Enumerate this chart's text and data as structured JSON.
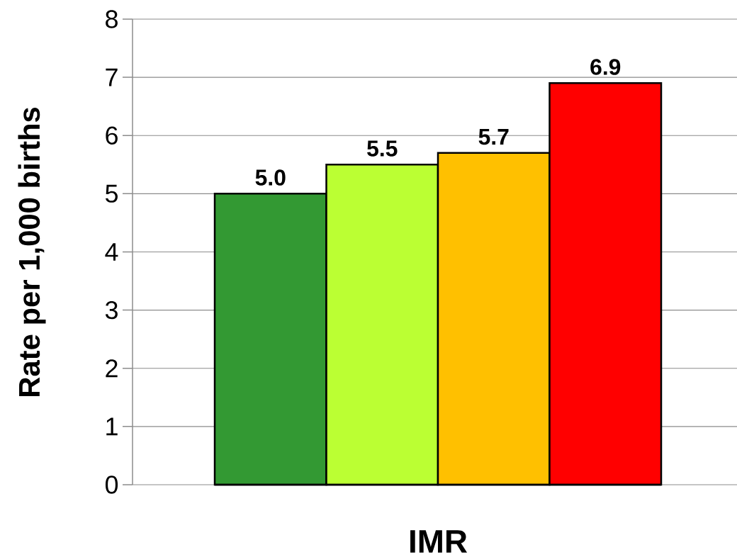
{
  "chart_data": {
    "type": "bar",
    "xlabel": "IMR",
    "ylabel": "Rate per 1,000 births",
    "categories": [
      null,
      null,
      null,
      null
    ],
    "values": [
      5.0,
      5.5,
      5.7,
      6.9
    ],
    "colors": [
      "#339933",
      "#bbff33",
      "#ffc000",
      "#ff0000"
    ],
    "value_labels": [
      "5.0",
      "5.5",
      "5.7",
      "6.9"
    ],
    "ylim": [
      0,
      8
    ],
    "yticks": [
      0,
      1,
      2,
      3,
      4,
      5,
      6,
      7,
      8
    ],
    "grid": "y"
  }
}
